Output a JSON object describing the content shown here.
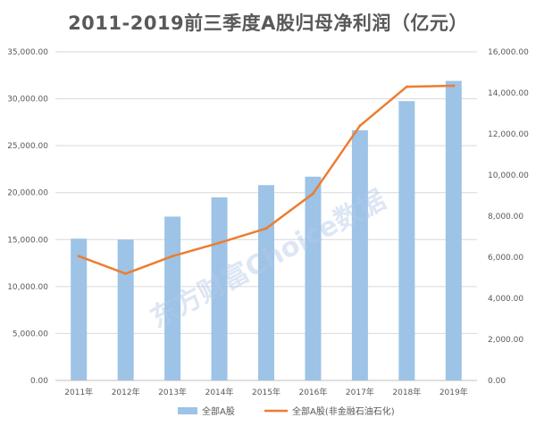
{
  "chart_data": {
    "type": "bar",
    "title": "2011-2019前三季度A股归母净利润（亿元）",
    "categories": [
      "2011年",
      "2012年",
      "2013年",
      "2014年",
      "2015年",
      "2016年",
      "2017年",
      "2018年",
      "2019年"
    ],
    "series": [
      {
        "name": "全部A股",
        "type": "bar",
        "axis": "left",
        "color": "#9dc3e6",
        "values": [
          15100,
          15000,
          17450,
          19500,
          20800,
          21700,
          26650,
          29750,
          31900
        ]
      },
      {
        "name": "全部A股(非金融石油石化)",
        "type": "line",
        "axis": "right",
        "color": "#ed7d31",
        "values": [
          6050,
          5200,
          6050,
          6700,
          7400,
          9100,
          12400,
          14300,
          14350
        ]
      }
    ],
    "ylim_left": [
      0,
      35000
    ],
    "ylim_right": [
      0,
      16000
    ],
    "yticks_left": [
      "0.00",
      "5,000.00",
      "10,000.00",
      "15,000.00",
      "20,000.00",
      "25,000.00",
      "30,000.00",
      "35,000.00"
    ],
    "yticks_right": [
      "0.00",
      "2,000.00",
      "4,000.00",
      "6,000.00",
      "8,000.00",
      "10,000.00",
      "12,000.00",
      "14,000.00",
      "16,000.00"
    ],
    "grid": true,
    "legend": "bottom",
    "watermark": "东方财富Choice数据"
  }
}
